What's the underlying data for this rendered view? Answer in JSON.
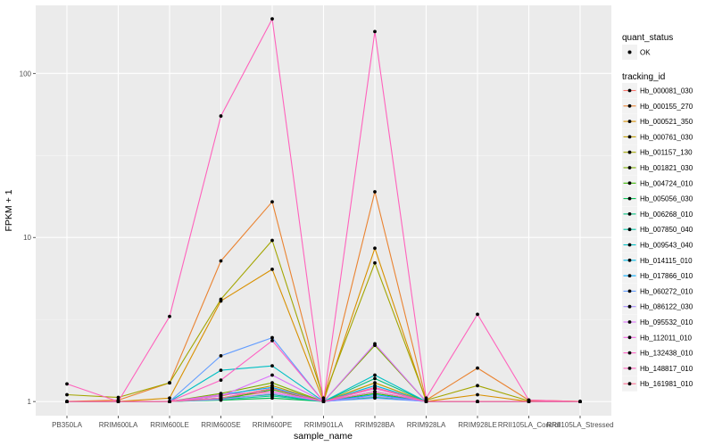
{
  "chart_data": {
    "type": "line",
    "xlabel": "sample_name",
    "ylabel": "FPKM + 1",
    "y_scale": "log10",
    "ylim": [
      0.82,
      260
    ],
    "y_ticks": [
      1,
      10,
      100
    ],
    "y_tick_labels": [
      "1",
      "10",
      "100"
    ],
    "grid": true,
    "legend_position": "right",
    "categories": [
      "PB350LA",
      "RRIM600LA",
      "RRIM600LE",
      "RRIM600SE",
      "RRIM600PE",
      "RRIM901LA",
      "RRIM928BA",
      "RRIM928LA",
      "RRIM928LE",
      "RRII105LA_Control",
      "RRII105LA_Stressed"
    ],
    "quant_status_legend": {
      "title": "quant_status",
      "items": [
        "OK"
      ]
    },
    "tracking_legend_title": "tracking_id",
    "series": [
      {
        "name": "Hb_000081_030",
        "color": "#F8766D",
        "values": [
          1.0,
          1.0,
          1.0,
          1.05,
          1.15,
          1.0,
          1.2,
          1.0,
          1.0,
          1.0,
          1.0
        ]
      },
      {
        "name": "Hb_000155_270",
        "color": "#EA8331",
        "values": [
          1.0,
          1.02,
          1.3,
          7.2,
          16.5,
          1.02,
          19.0,
          1.02,
          1.6,
          1.02,
          1.0
        ]
      },
      {
        "name": "Hb_000521_350",
        "color": "#D89000",
        "values": [
          1.0,
          1.0,
          1.05,
          4.1,
          6.4,
          1.0,
          8.6,
          1.0,
          1.1,
          1.0,
          1.0
        ]
      },
      {
        "name": "Hb_000761_030",
        "color": "#C09B00",
        "values": [
          1.0,
          1.0,
          1.0,
          1.08,
          1.25,
          1.0,
          1.3,
          1.0,
          1.0,
          1.0,
          1.0
        ]
      },
      {
        "name": "Hb_001157_130",
        "color": "#A3A500",
        "values": [
          1.1,
          1.06,
          1.3,
          4.2,
          9.6,
          1.05,
          7.0,
          1.02,
          1.25,
          1.01,
          1.0
        ]
      },
      {
        "name": "Hb_001821_030",
        "color": "#7CAE00",
        "values": [
          1.0,
          1.0,
          1.0,
          1.12,
          1.3,
          1.0,
          2.2,
          1.0,
          1.0,
          1.0,
          1.0
        ]
      },
      {
        "name": "Hb_004724_010",
        "color": "#39B600",
        "values": [
          1.0,
          1.0,
          1.0,
          1.03,
          1.18,
          1.0,
          1.12,
          1.0,
          1.0,
          1.0,
          1.0
        ]
      },
      {
        "name": "Hb_005056_030",
        "color": "#00BB4E",
        "values": [
          1.0,
          1.0,
          1.0,
          1.02,
          1.05,
          1.0,
          1.06,
          1.0,
          1.0,
          1.0,
          1.0
        ]
      },
      {
        "name": "Hb_006268_010",
        "color": "#00BF7D",
        "values": [
          1.0,
          1.0,
          1.0,
          1.05,
          1.1,
          1.0,
          1.38,
          1.0,
          1.0,
          1.0,
          1.0
        ]
      },
      {
        "name": "Hb_007850_040",
        "color": "#00C1A3",
        "values": [
          1.0,
          1.0,
          1.0,
          1.03,
          1.08,
          1.0,
          1.15,
          1.0,
          1.0,
          1.0,
          1.0
        ]
      },
      {
        "name": "Hb_009543_040",
        "color": "#00BFC4",
        "values": [
          1.0,
          1.0,
          1.0,
          1.55,
          1.65,
          1.0,
          1.45,
          1.0,
          1.0,
          1.0,
          1.0
        ]
      },
      {
        "name": "Hb_014115_010",
        "color": "#00B8E5",
        "values": [
          1.0,
          1.0,
          1.0,
          1.05,
          1.2,
          1.0,
          1.25,
          1.0,
          1.0,
          1.0,
          1.0
        ]
      },
      {
        "name": "Hb_017866_010",
        "color": "#00ABFD",
        "values": [
          1.0,
          1.0,
          1.0,
          1.1,
          1.22,
          1.0,
          1.1,
          1.0,
          1.0,
          1.0,
          1.0
        ]
      },
      {
        "name": "Hb_060272_010",
        "color": "#619CFF",
        "values": [
          1.0,
          1.0,
          1.0,
          1.9,
          2.45,
          1.0,
          1.05,
          1.0,
          1.0,
          1.0,
          1.0
        ]
      },
      {
        "name": "Hb_086122_030",
        "color": "#A58AFF",
        "values": [
          1.0,
          1.0,
          1.0,
          1.03,
          1.12,
          1.0,
          1.08,
          1.0,
          1.0,
          1.0,
          1.0
        ]
      },
      {
        "name": "Hb_095532_010",
        "color": "#DB72FB",
        "values": [
          1.0,
          1.0,
          1.0,
          1.08,
          1.45,
          1.0,
          2.25,
          1.0,
          1.0,
          1.0,
          1.0
        ]
      },
      {
        "name": "Hb_112011_010",
        "color": "#F564E3",
        "values": [
          1.0,
          1.0,
          1.0,
          1.1,
          1.15,
          1.0,
          1.2,
          1.0,
          1.0,
          1.0,
          1.0
        ]
      },
      {
        "name": "Hb_132438_010",
        "color": "#FF61C3",
        "values": [
          1.0,
          1.0,
          1.0,
          1.35,
          2.35,
          1.0,
          1.15,
          1.0,
          1.0,
          1.0,
          1.0
        ]
      },
      {
        "name": "Hb_148817_010",
        "color": "#FF62BC",
        "values": [
          1.28,
          1.0,
          3.3,
          55.0,
          215.0,
          1.0,
          180.0,
          1.05,
          3.4,
          1.02,
          1.0
        ]
      },
      {
        "name": "Hb_161981_010",
        "color": "#FF6C90",
        "values": [
          1.0,
          1.0,
          1.0,
          1.05,
          1.2,
          1.0,
          1.22,
          1.0,
          1.0,
          1.0,
          1.0
        ]
      }
    ]
  }
}
